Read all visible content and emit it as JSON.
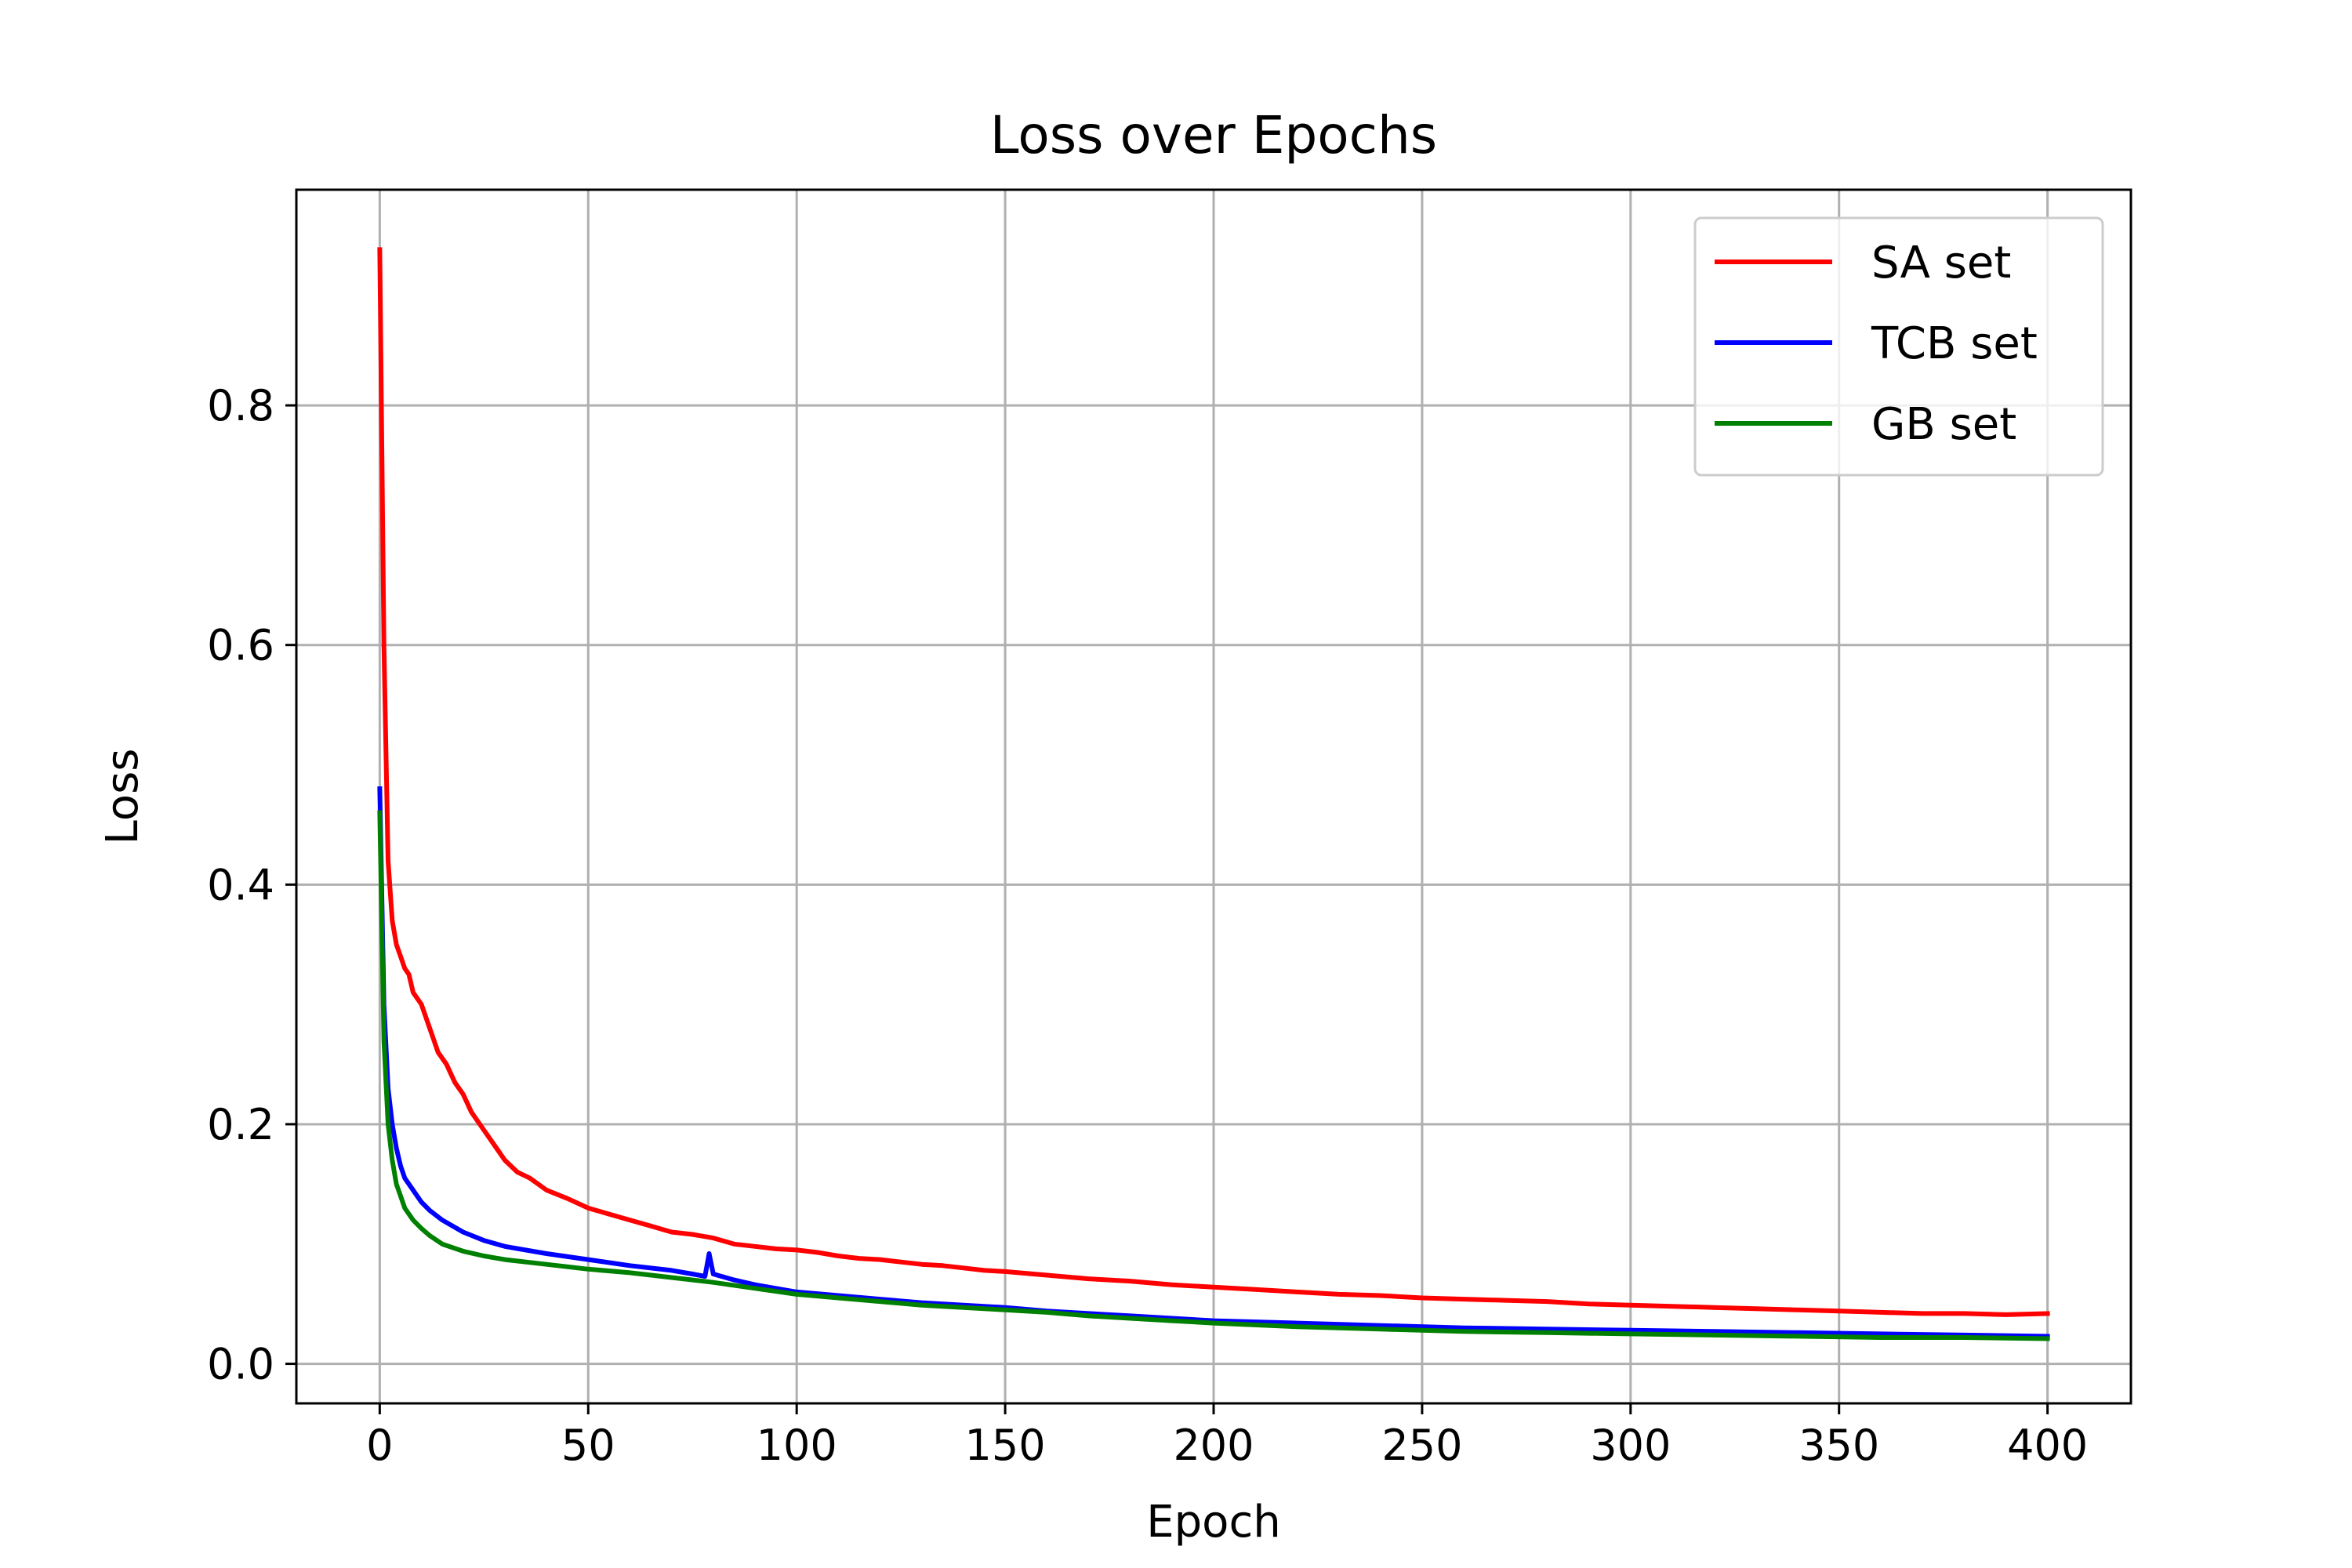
{
  "chart_data": {
    "type": "line",
    "title": "Loss over Epochs",
    "xlabel": "Epoch",
    "ylabel": "Loss",
    "xlim": [
      -20,
      420
    ],
    "ylim": [
      -0.033,
      0.98
    ],
    "xticks": [
      0,
      50,
      100,
      150,
      200,
      250,
      300,
      350,
      400
    ],
    "xtick_labels": [
      "0",
      "50",
      "100",
      "150",
      "200",
      "250",
      "300",
      "350",
      "400"
    ],
    "yticks": [
      0.0,
      0.2,
      0.4,
      0.6,
      0.8
    ],
    "ytick_labels": [
      "0.0",
      "0.2",
      "0.4",
      "0.6",
      "0.8"
    ],
    "grid": true,
    "legend_position": "top-right",
    "series": [
      {
        "name": "SA set",
        "color": "#ff0000",
        "x": [
          0,
          1,
          2,
          3,
          4,
          5,
          6,
          7,
          8,
          10,
          12,
          14,
          16,
          18,
          20,
          22,
          25,
          28,
          30,
          33,
          36,
          40,
          45,
          50,
          55,
          60,
          65,
          70,
          75,
          80,
          85,
          90,
          95,
          100,
          105,
          110,
          115,
          120,
          125,
          130,
          135,
          140,
          145,
          150,
          160,
          170,
          180,
          190,
          200,
          210,
          220,
          230,
          240,
          250,
          260,
          270,
          280,
          290,
          300,
          310,
          320,
          330,
          340,
          350,
          360,
          370,
          380,
          390,
          400
        ],
        "y": [
          0.93,
          0.6,
          0.42,
          0.37,
          0.35,
          0.34,
          0.33,
          0.325,
          0.31,
          0.3,
          0.28,
          0.26,
          0.25,
          0.235,
          0.225,
          0.21,
          0.195,
          0.18,
          0.17,
          0.16,
          0.155,
          0.145,
          0.138,
          0.13,
          0.125,
          0.12,
          0.115,
          0.11,
          0.108,
          0.105,
          0.1,
          0.098,
          0.096,
          0.095,
          0.093,
          0.09,
          0.088,
          0.087,
          0.085,
          0.083,
          0.082,
          0.08,
          0.078,
          0.077,
          0.074,
          0.071,
          0.069,
          0.066,
          0.064,
          0.062,
          0.06,
          0.058,
          0.057,
          0.055,
          0.054,
          0.053,
          0.052,
          0.05,
          0.049,
          0.048,
          0.047,
          0.046,
          0.045,
          0.044,
          0.043,
          0.042,
          0.042,
          0.041,
          0.042
        ]
      },
      {
        "name": "TCB set",
        "color": "#0000ff",
        "x": [
          0,
          1,
          2,
          3,
          4,
          5,
          6,
          8,
          10,
          12,
          15,
          20,
          25,
          30,
          40,
          50,
          60,
          70,
          75,
          78,
          79,
          80,
          85,
          90,
          100,
          110,
          120,
          130,
          140,
          150,
          160,
          170,
          180,
          190,
          200,
          220,
          240,
          260,
          280,
          300,
          320,
          340,
          360,
          380,
          400
        ],
        "y": [
          0.48,
          0.3,
          0.23,
          0.2,
          0.18,
          0.165,
          0.155,
          0.145,
          0.135,
          0.128,
          0.12,
          0.11,
          0.103,
          0.098,
          0.092,
          0.087,
          0.082,
          0.078,
          0.075,
          0.073,
          0.092,
          0.075,
          0.07,
          0.066,
          0.06,
          0.057,
          0.054,
          0.051,
          0.049,
          0.047,
          0.044,
          0.042,
          0.04,
          0.038,
          0.036,
          0.034,
          0.032,
          0.03,
          0.029,
          0.028,
          0.027,
          0.026,
          0.025,
          0.024,
          0.023
        ]
      },
      {
        "name": "GB set",
        "color": "#008000",
        "x": [
          0,
          1,
          2,
          3,
          4,
          5,
          6,
          8,
          10,
          12,
          15,
          20,
          25,
          30,
          40,
          50,
          60,
          70,
          80,
          90,
          100,
          110,
          120,
          130,
          140,
          150,
          160,
          170,
          180,
          190,
          200,
          220,
          240,
          260,
          280,
          300,
          320,
          340,
          360,
          380,
          400
        ],
        "y": [
          0.46,
          0.27,
          0.2,
          0.17,
          0.15,
          0.14,
          0.13,
          0.12,
          0.113,
          0.107,
          0.1,
          0.094,
          0.09,
          0.087,
          0.083,
          0.079,
          0.076,
          0.072,
          0.068,
          0.063,
          0.058,
          0.055,
          0.052,
          0.049,
          0.047,
          0.045,
          0.043,
          0.04,
          0.038,
          0.036,
          0.034,
          0.031,
          0.029,
          0.027,
          0.026,
          0.025,
          0.024,
          0.023,
          0.022,
          0.022,
          0.021
        ]
      }
    ]
  }
}
